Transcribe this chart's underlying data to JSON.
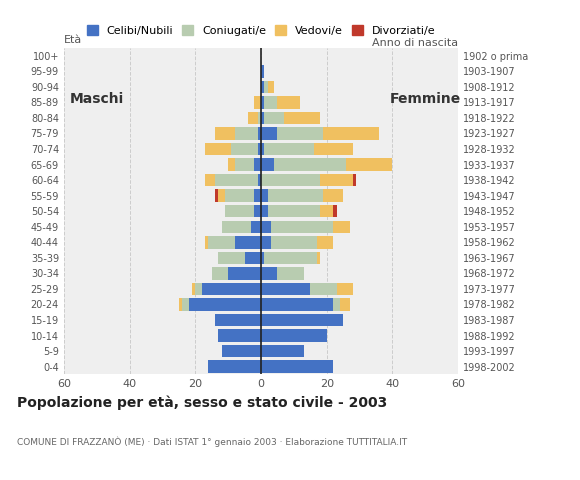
{
  "age_groups": [
    "0-4",
    "5-9",
    "10-14",
    "15-19",
    "20-24",
    "25-29",
    "30-34",
    "35-39",
    "40-44",
    "45-49",
    "50-54",
    "55-59",
    "60-64",
    "65-69",
    "70-74",
    "75-79",
    "80-84",
    "85-89",
    "90-94",
    "95-99",
    "100+"
  ],
  "birth_years": [
    "1998-2002",
    "1993-1997",
    "1988-1992",
    "1983-1987",
    "1978-1982",
    "1973-1977",
    "1968-1972",
    "1963-1967",
    "1958-1962",
    "1953-1957",
    "1948-1952",
    "1943-1947",
    "1938-1942",
    "1933-1937",
    "1928-1932",
    "1923-1927",
    "1918-1922",
    "1913-1917",
    "1908-1912",
    "1903-1907",
    "1902 o prima"
  ],
  "males": {
    "celibe": [
      16,
      12,
      13,
      14,
      22,
      18,
      10,
      5,
      8,
      3,
      2,
      2,
      1,
      2,
      1,
      1,
      0,
      0,
      0,
      0,
      0
    ],
    "coniugato": [
      0,
      0,
      0,
      0,
      2,
      2,
      5,
      8,
      8,
      9,
      9,
      9,
      13,
      6,
      8,
      7,
      1,
      0,
      0,
      0,
      0
    ],
    "vedovo": [
      0,
      0,
      0,
      0,
      1,
      1,
      0,
      0,
      1,
      0,
      0,
      2,
      3,
      2,
      8,
      6,
      3,
      2,
      0,
      0,
      0
    ],
    "divorziato": [
      0,
      0,
      0,
      0,
      0,
      0,
      0,
      0,
      0,
      0,
      0,
      1,
      0,
      0,
      0,
      0,
      0,
      0,
      0,
      0,
      0
    ]
  },
  "females": {
    "nubile": [
      22,
      13,
      20,
      25,
      22,
      15,
      5,
      1,
      3,
      3,
      2,
      2,
      0,
      4,
      1,
      5,
      1,
      1,
      1,
      1,
      0
    ],
    "coniugata": [
      0,
      0,
      0,
      0,
      2,
      8,
      8,
      16,
      14,
      19,
      16,
      17,
      18,
      22,
      15,
      14,
      6,
      4,
      1,
      0,
      0
    ],
    "vedova": [
      0,
      0,
      0,
      0,
      3,
      5,
      0,
      1,
      5,
      5,
      4,
      6,
      10,
      14,
      12,
      17,
      11,
      7,
      2,
      0,
      0
    ],
    "divorziata": [
      0,
      0,
      0,
      0,
      0,
      0,
      0,
      0,
      0,
      0,
      1,
      0,
      1,
      0,
      0,
      0,
      0,
      0,
      0,
      0,
      0
    ]
  },
  "colors": {
    "celibe_nubile": "#4472C4",
    "coniugato_coniugata": "#B8CCB0",
    "vedovo_vedova": "#F0C060",
    "divorziato_divorziata": "#C0392B"
  },
  "title": "Popolazione per età, sesso e stato civile - 2003",
  "subtitle": "COMUNE DI FRAZZANÒ (ME) · Dati ISTAT 1° gennaio 2003 · Elaborazione TUTTITALIA.IT",
  "xlabel_left": "Maschi",
  "xlabel_right": "Femmine",
  "ylabel_left": "Età",
  "ylabel_right": "Anno di nascita",
  "xlim": 60,
  "legend_labels": [
    "Celibi/Nubili",
    "Coniugati/e",
    "Vedovi/e",
    "Divorziati/e"
  ],
  "background_color": "#ffffff",
  "plot_bg_color": "#efefef"
}
